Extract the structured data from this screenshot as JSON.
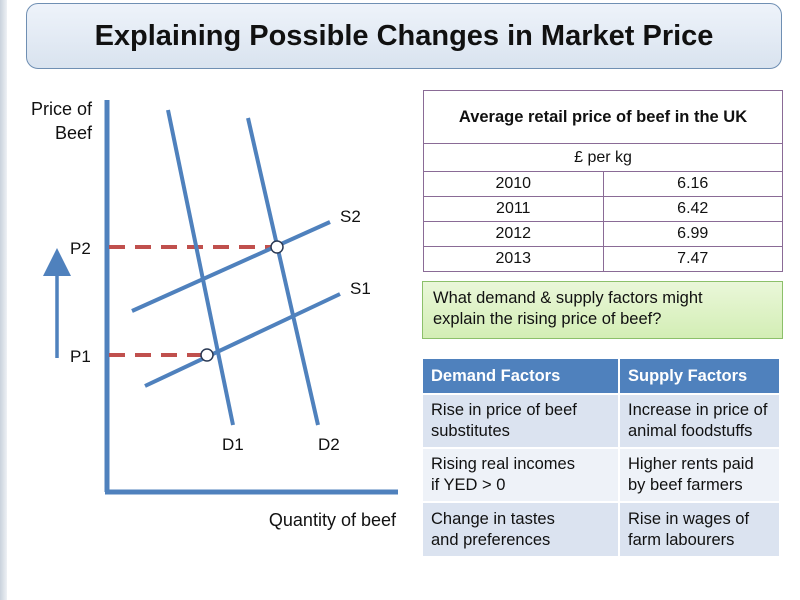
{
  "title": "Explaining Possible Changes in Market Price",
  "diagram": {
    "y_axis_label_line1": "Price of",
    "y_axis_label_line2": "Beef",
    "x_axis_label": "Quantity of beef",
    "labels": {
      "p1": "P1",
      "p2": "P2",
      "s1": "S1",
      "s2": "S2",
      "d1": "D1",
      "d2": "D2"
    },
    "colors": {
      "curves": "#4f81bd",
      "axes": "#4f81bd",
      "price_guides": "#c0504d"
    }
  },
  "price_table": {
    "caption": "Average retail price of beef in the UK",
    "unit": "£ per kg",
    "rows": [
      {
        "year": "2010",
        "price": "6.16"
      },
      {
        "year": "2011",
        "price": "6.42"
      },
      {
        "year": "2012",
        "price": "6.99"
      },
      {
        "year": "2013",
        "price": "7.47"
      }
    ]
  },
  "question": {
    "line1": "What demand & supply factors might",
    "line2": "explain the rising price of beef?"
  },
  "factors": {
    "headers": [
      "Demand Factors",
      "Supply Factors"
    ],
    "rows": [
      {
        "demand": [
          "Rise in price of beef",
          "substitutes"
        ],
        "supply": [
          "Increase in price of",
          "animal foodstuffs"
        ]
      },
      {
        "demand": [
          "Rising real incomes",
          "if YED > 0"
        ],
        "supply": [
          "Higher rents paid",
          "by beef farmers"
        ]
      },
      {
        "demand": [
          "Change in tastes",
          "and preferences"
        ],
        "supply": [
          "Rise in wages of",
          "farm labourers"
        ]
      }
    ]
  }
}
